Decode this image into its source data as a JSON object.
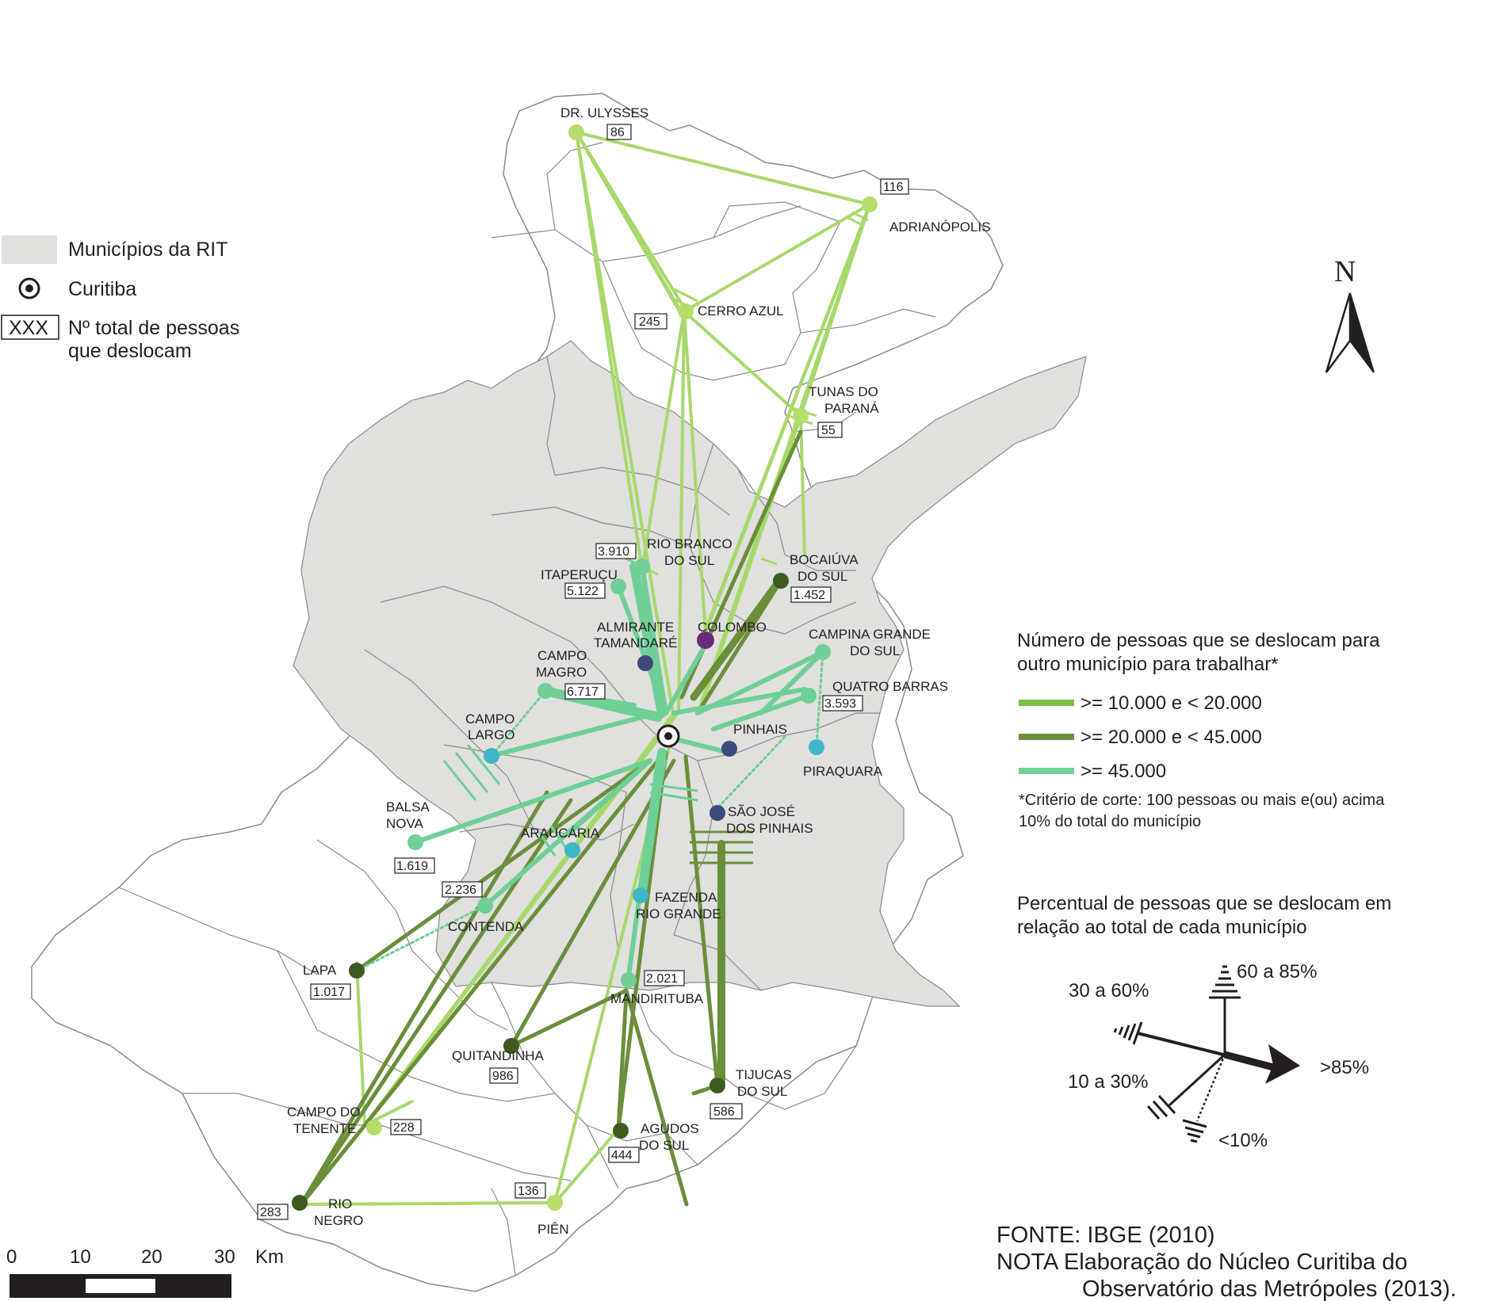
{
  "legend": {
    "rit_label": "Municípios da RIT",
    "curitiba_label": "Curitiba",
    "box_sample": "XXX",
    "total_line1": "Nº total de pessoas",
    "total_line2": "que deslocam",
    "flow_title_1": "Número de pessoas que se deslocam para",
    "flow_title_2": "outro município para trabalhar*",
    "class_1": ">= 10.000 e < 20.000",
    "class_2": ">= 20.000 e < 45.000",
    "class_3": ">= 45.000",
    "note_1": "*Critério de corte: 100 pessoas ou mais e(ou) acima",
    "note_2": "10% do total do município",
    "pct_title_1": "Percentual de pessoas que se deslocam em",
    "pct_title_2": "relação ao total de cada município",
    "pct_30_60": "30 a 60%",
    "pct_60_85": "60 a 85%",
    "pct_85": ">85%",
    "pct_10_30": "10 a 30%",
    "pct_lt10": "<10%"
  },
  "colors": {
    "class_1": "#a6d96a",
    "class_2": "#6b8e3a",
    "class_3": "#6fcf97",
    "rit_fill": "#e0e0de",
    "node_dark": "#3f5a1e",
    "node_teal": "#3fb7c9",
    "node_navy": "#3d4a7a",
    "node_purple": "#6a2a7a"
  },
  "north_label": "N",
  "scale": {
    "t0": "0",
    "t1": "10",
    "t2": "20",
    "t3": "30",
    "unit": "Km"
  },
  "source": {
    "line1": "FONTE: IBGE (2010)",
    "line2": "NOTA Elaboração do Núcleo Curitiba do",
    "line3": "Observatório das Metrópoles (2013)."
  },
  "municipalities": {
    "dr_ulysses": {
      "name": "DR. ULYSSES",
      "total": "86"
    },
    "adrianopolis": {
      "name": "ADRIANÓPOLIS",
      "total": "116"
    },
    "cerro_azul": {
      "name": "CERRO AZUL",
      "total": "245"
    },
    "tunas": {
      "name1": "TUNAS DO",
      "name2": "PARANÁ",
      "total": "55"
    },
    "rio_branco": {
      "name1": "RIO BRANCO",
      "name2": "DO SUL",
      "total": "3.910"
    },
    "itaperucu": {
      "name": "ITAPERUÇU",
      "total": "5.122"
    },
    "bocaiuva": {
      "name1": "BOCAIÚVA",
      "name2": "DO SUL",
      "total": "1.452"
    },
    "almirante": {
      "name1": "ALMIRANTE",
      "name2": "TAMANDARÉ"
    },
    "colombo": {
      "name": "COLOMBO"
    },
    "campina": {
      "name1": "CAMPINA GRANDE",
      "name2": "DO SUL"
    },
    "campo_magro": {
      "name1": "CAMPO",
      "name2": "MAGRO",
      "total": "6.717"
    },
    "quatro_barras": {
      "name": "QUATRO BARRAS",
      "total": "3.593"
    },
    "campo_largo": {
      "name1": "CAMPO",
      "name2": "LARGO"
    },
    "pinhais": {
      "name": "PINHAIS"
    },
    "piraquara": {
      "name": "PIRAQUARA"
    },
    "balsa_nova": {
      "name1": "BALSA",
      "name2": "NOVA",
      "total": "1.619"
    },
    "sao_jose": {
      "name1": "SÃO JOSÉ",
      "name2": "DOS PINHAIS"
    },
    "araucaria": {
      "name": "ARAUCÁRIA"
    },
    "contenda": {
      "name": "CONTENDA",
      "total": "2.236"
    },
    "fazenda": {
      "name1": "FAZENDA",
      "name2": "RIO GRANDE"
    },
    "lapa": {
      "name": "LAPA",
      "total": "1.017"
    },
    "mandirituba": {
      "name": "MANDIRITUBA",
      "total": "2.021"
    },
    "quitandinha": {
      "name": "QUITANDINHA",
      "total": "986"
    },
    "tijucas": {
      "name1": "TIJUCAS",
      "name2": "DO SUL",
      "total": "586"
    },
    "campo_tenente": {
      "name1": "CAMPO DO",
      "name2": "TENENTE",
      "total": "228"
    },
    "agudos": {
      "name1": "AGUDOS",
      "name2": "DO SUL",
      "total": "444"
    },
    "pien": {
      "name": "PIÊN",
      "total": "136"
    },
    "rio_negro": {
      "name1": "RIO",
      "name2": "NEGRO",
      "total": "283"
    }
  }
}
